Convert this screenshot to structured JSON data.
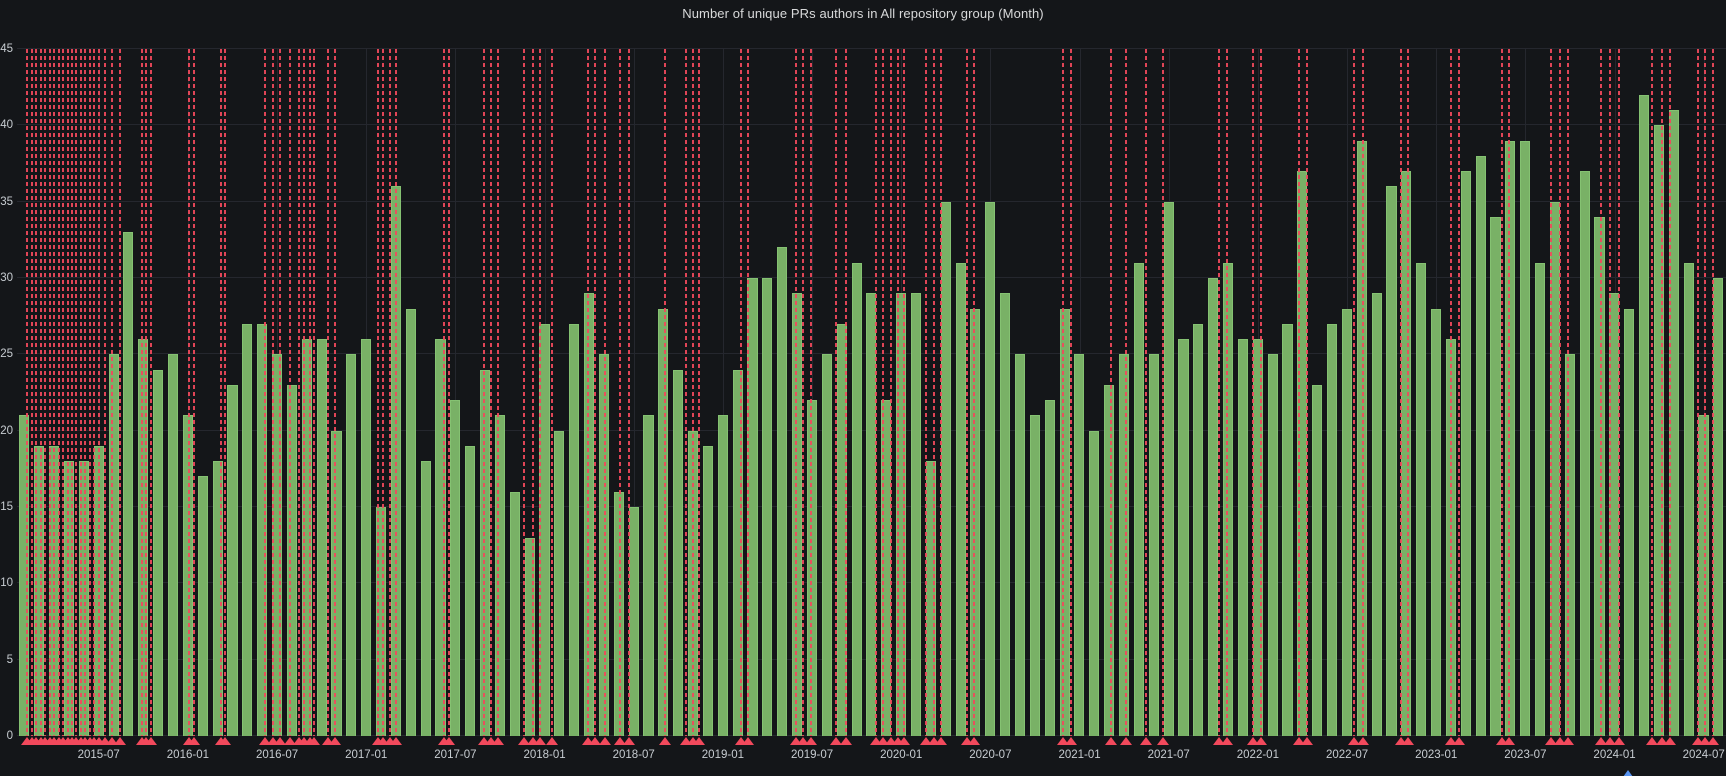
{
  "panel": {
    "title": "Number of unique PRs authors in All repository group (Month)"
  },
  "colors": {
    "background": "#141619",
    "bar_fill": "#79b166",
    "bar_border": "#85c272",
    "annotation_red": "#f2495c",
    "grid": "#25272e",
    "axis_text": "#c7ccd1",
    "title_text": "#d8d9da",
    "blue_marker": "#5794f2"
  },
  "chart_data": {
    "type": "bar",
    "title": "Number of unique PRs authors in All repository group (Month)",
    "xlabel": "",
    "ylabel": "",
    "ylim": [
      0,
      45
    ],
    "y_ticks": [
      0,
      5,
      10,
      15,
      20,
      25,
      30,
      35,
      40,
      45
    ],
    "grid": true,
    "legend_position": "none",
    "categories": [
      "2015-02",
      "2015-03",
      "2015-04",
      "2015-05",
      "2015-06",
      "2015-07",
      "2015-08",
      "2015-09",
      "2015-10",
      "2015-11",
      "2015-12",
      "2016-01",
      "2016-02",
      "2016-03",
      "2016-04",
      "2016-05",
      "2016-06",
      "2016-07",
      "2016-08",
      "2016-09",
      "2016-10",
      "2016-11",
      "2016-12",
      "2017-01",
      "2017-02",
      "2017-03",
      "2017-04",
      "2017-05",
      "2017-06",
      "2017-07",
      "2017-08",
      "2017-09",
      "2017-10",
      "2017-11",
      "2017-12",
      "2018-01",
      "2018-02",
      "2018-03",
      "2018-04",
      "2018-05",
      "2018-06",
      "2018-07",
      "2018-08",
      "2018-09",
      "2018-10",
      "2018-11",
      "2018-12",
      "2019-01",
      "2019-02",
      "2019-03",
      "2019-04",
      "2019-05",
      "2019-06",
      "2019-07",
      "2019-08",
      "2019-09",
      "2019-10",
      "2019-11",
      "2019-12",
      "2020-01",
      "2020-02",
      "2020-03",
      "2020-04",
      "2020-05",
      "2020-06",
      "2020-07",
      "2020-08",
      "2020-09",
      "2020-10",
      "2020-11",
      "2020-12",
      "2021-01",
      "2021-02",
      "2021-03",
      "2021-04",
      "2021-05",
      "2021-06",
      "2021-07",
      "2021-08",
      "2021-09",
      "2021-10",
      "2021-11",
      "2021-12",
      "2022-01",
      "2022-02",
      "2022-03",
      "2022-04",
      "2022-05",
      "2022-06",
      "2022-07",
      "2022-08",
      "2022-09",
      "2022-10",
      "2022-11",
      "2022-12",
      "2023-01",
      "2023-02",
      "2023-03",
      "2023-04",
      "2023-05",
      "2023-06",
      "2023-07",
      "2023-08",
      "2023-09",
      "2023-10",
      "2023-11",
      "2023-12",
      "2024-01",
      "2024-02",
      "2024-03",
      "2024-04",
      "2024-05",
      "2024-06",
      "2024-07",
      "2024-08"
    ],
    "values": [
      21,
      19,
      19,
      18,
      18,
      19,
      25,
      33,
      26,
      24,
      25,
      21,
      17,
      18,
      23,
      27,
      27,
      25,
      23,
      26,
      26,
      20,
      25,
      26,
      15,
      36,
      28,
      18,
      26,
      22,
      19,
      24,
      21,
      16,
      13,
      27,
      20,
      27,
      29,
      25,
      16,
      15,
      21,
      28,
      24,
      20,
      19,
      21,
      24,
      30,
      30,
      32,
      29,
      22,
      25,
      27,
      31,
      29,
      22,
      29,
      29,
      18,
      35,
      31,
      28,
      35,
      29,
      25,
      21,
      22,
      28,
      25,
      20,
      23,
      25,
      31,
      25,
      35,
      26,
      27,
      30,
      31,
      26,
      26,
      25,
      27,
      37,
      23,
      27,
      28,
      39,
      29,
      36,
      37,
      31,
      28,
      26,
      37,
      38,
      34,
      39,
      39,
      31,
      35,
      25,
      37,
      34,
      29,
      28,
      42,
      40,
      41,
      31,
      21,
      30
    ],
    "x_tick_labels": [
      "2015-07",
      "2016-01",
      "2016-07",
      "2017-01",
      "2017-07",
      "2018-01",
      "2018-07",
      "2019-01",
      "2019-07",
      "2020-01",
      "2020-07",
      "2021-01",
      "2021-07",
      "2022-01",
      "2022-07",
      "2023-01",
      "2023-07",
      "2024-01",
      "2024-07"
    ],
    "x_tick_month_index": [
      6,
      12,
      18,
      24,
      30,
      36,
      42,
      48,
      54,
      60,
      66,
      72,
      78,
      84,
      90,
      96,
      102,
      108,
      114
    ],
    "annotations_month_index": [
      1.2,
      1.5,
      1.8,
      2.1,
      2.4,
      2.7,
      3.0,
      3.3,
      3.6,
      3.9,
      4.2,
      4.5,
      4.8,
      5.1,
      5.4,
      5.7,
      6.0,
      6.4,
      6.9,
      7.4,
      8.9,
      9.2,
      9.5,
      12.1,
      12.4,
      14.2,
      14.5,
      17.2,
      17.7,
      18.2,
      18.9,
      19.5,
      19.8,
      20.2,
      20.5,
      21.4,
      21.9,
      24.8,
      25.1,
      25.6,
      26.0,
      29.2,
      29.6,
      31.9,
      32.4,
      32.9,
      34.6,
      35.2,
      35.7,
      36.5,
      38.9,
      39.4,
      40.1,
      41.1,
      41.7,
      44.1,
      45.5,
      46.0,
      46.4,
      49.2,
      49.7,
      52.9,
      53.4,
      53.9,
      55.6,
      56.3,
      58.3,
      58.8,
      59.3,
      59.8,
      60.2,
      61.7,
      62.2,
      62.7,
      64.4,
      64.9,
      70.9,
      71.4,
      74.1,
      75.1,
      76.5,
      77.6,
      81.4,
      81.9,
      83.7,
      84.2,
      86.8,
      87.3,
      90.5,
      91.1,
      93.6,
      94.1,
      97.0,
      97.5,
      100.4,
      100.9,
      103.7,
      104.3,
      104.9,
      107.1,
      107.7,
      108.3,
      110.5,
      111.2,
      111.7,
      113.6,
      114.1,
      114.6
    ],
    "blue_marker_month_index": 108.9
  }
}
